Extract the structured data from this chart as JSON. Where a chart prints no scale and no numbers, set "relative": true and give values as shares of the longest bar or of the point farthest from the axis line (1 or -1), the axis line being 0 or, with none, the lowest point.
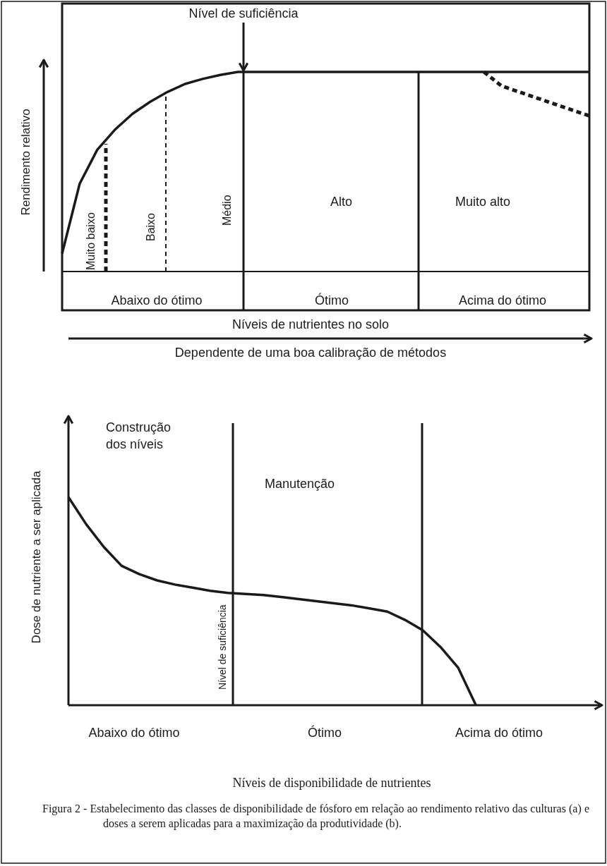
{
  "chart_data": [
    {
      "type": "line",
      "relative": true,
      "ylabel": "Rendimento relativo",
      "xlabel": "Níveis de nutrientes no solo",
      "categories": [
        null,
        null,
        null,
        null,
        null,
        null,
        null,
        null,
        null,
        null,
        null,
        null,
        null,
        null,
        null,
        null,
        null,
        null,
        null,
        null,
        null,
        null,
        null,
        null,
        null,
        null,
        null,
        null,
        null,
        null,
        null
      ],
      "series": [
        {
          "color": "#1a1a1a",
          "line_style": "solid",
          "values": [
            0.09,
            0.44,
            0.61,
            0.71,
            0.79,
            0.85,
            0.9,
            0.94,
            0.965,
            0.985,
            1,
            1,
            1,
            1,
            1,
            1,
            1,
            1,
            1,
            1,
            1,
            1,
            1,
            1,
            1,
            1,
            1,
            1,
            1,
            1,
            1
          ]
        },
        {
          "color": "#1a1a1a",
          "line_style": "dashed",
          "values": [
            null,
            null,
            null,
            null,
            null,
            null,
            null,
            null,
            null,
            null,
            null,
            null,
            null,
            null,
            null,
            null,
            null,
            null,
            null,
            null,
            null,
            null,
            null,
            null,
            1,
            0.93,
            0.9,
            0.87,
            0.84,
            0.81,
            0.78
          ]
        }
      ],
      "annotations": [
        "Nível de suficiência",
        "Muito baixo",
        "Baixo",
        "Médio",
        "Alto",
        "Muito alto",
        "Abaixo do ótimo",
        "Ótimo",
        "Acima do ótimo",
        "Dependente de uma boa calibração de métodos"
      ]
    },
    {
      "type": "line",
      "relative": true,
      "ylabel": "Dose de nutriente a ser aplicada",
      "xlabel": "Níveis de disponibilidade de nutrientes",
      "categories": [
        null,
        null,
        null,
        null,
        null,
        null,
        null,
        null,
        null,
        null,
        null,
        null,
        null,
        null,
        null,
        null,
        null,
        null,
        null,
        null,
        null,
        null,
        null,
        null,
        null,
        null,
        null,
        null,
        null,
        null,
        null
      ],
      "series": [
        {
          "color": "#1a1a1a",
          "line_style": "solid",
          "values": [
            1,
            0.87,
            0.76,
            0.67,
            0.63,
            0.6,
            0.58,
            0.565,
            0.55,
            0.54,
            0.535,
            0.53,
            0.52,
            0.51,
            0.5,
            0.49,
            0.48,
            0.465,
            0.45,
            0.41,
            0.36,
            0.28,
            0.18,
            0,
            null,
            null,
            null,
            null,
            null,
            null,
            null
          ]
        }
      ],
      "annotations": [
        "Construção dos níveis",
        "Manutenção",
        "Nível de suficiência",
        "Abaixo do ótimo",
        "Ótimo",
        "Acima do ótimo",
        "Figura 2 - Estabelecimento das classes de disponibilidade de fósforo em relação ao rendimento relativo das culturas (a) e doses a serem aplicadas para a maximização da produtividade (b)."
      ]
    }
  ]
}
